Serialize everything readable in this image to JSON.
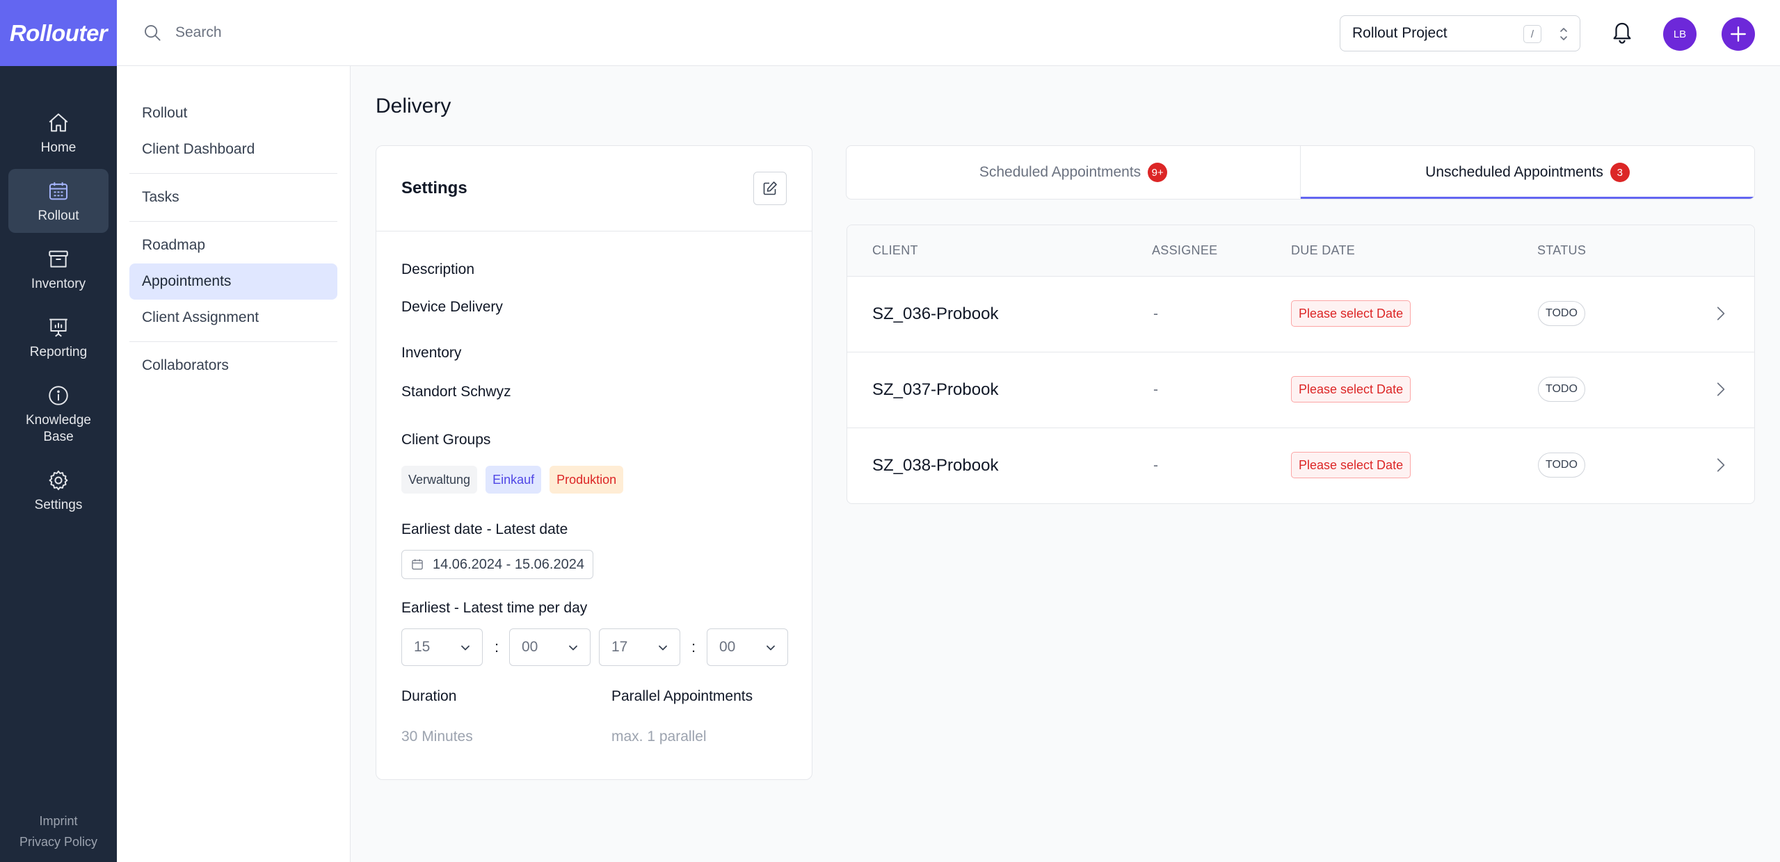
{
  "app": {
    "logo": "Rollouter"
  },
  "nav": {
    "items": [
      {
        "label": "Home",
        "icon": "home-icon"
      },
      {
        "label": "Rollout",
        "icon": "calendar-icon",
        "active": true
      },
      {
        "label": "Inventory",
        "icon": "archive-box-icon"
      },
      {
        "label": "Reporting",
        "icon": "presentation-chart-icon"
      },
      {
        "label": "Knowledge Base",
        "icon": "info-icon"
      },
      {
        "label": "Settings",
        "icon": "gear-icon"
      }
    ],
    "footer": {
      "imprint": "Imprint",
      "privacy": "Privacy Policy"
    }
  },
  "topbar": {
    "search_placeholder": "Search",
    "project": "Rollout Project",
    "shortcut": "/",
    "avatar_initials": "LB"
  },
  "subnav": {
    "items": [
      "Rollout",
      "Client Dashboard",
      "Tasks",
      "Roadmap",
      "Appointments",
      "Client Assignment",
      "Collaborators"
    ],
    "active": "Appointments"
  },
  "page": {
    "title": "Delivery"
  },
  "settings": {
    "title": "Settings",
    "description_label": "Description",
    "description_value": "Device Delivery",
    "inventory_label": "Inventory",
    "inventory_value": "Standort Schwyz",
    "client_groups_label": "Client Groups",
    "client_groups": [
      {
        "name": "Verwaltung",
        "bg": "#f3f4f6",
        "color": "#374151"
      },
      {
        "name": "Einkauf",
        "bg": "#e0e7ff",
        "color": "#4f46e5"
      },
      {
        "name": "Produktion",
        "bg": "#ffedd5",
        "color": "#dc2626"
      }
    ],
    "date_range_label": "Earliest date - Latest date",
    "date_range_value": "14.06.2024 - 15.06.2024",
    "time_label": "Earliest - Latest time per day",
    "earliest_hour": "15",
    "earliest_minute": "00",
    "latest_hour": "17",
    "latest_minute": "00",
    "time_separator": ":",
    "duration_label": "Duration",
    "duration_value": "30 Minutes",
    "parallel_label": "Parallel Appointments",
    "parallel_value": "max. 1 parallel"
  },
  "tabs": {
    "scheduled": {
      "label": "Scheduled Appointments",
      "count": "9+"
    },
    "unscheduled": {
      "label": "Unscheduled Appointments",
      "count": "3"
    }
  },
  "table": {
    "headers": {
      "client": "CLIENT",
      "assignee": "ASSIGNEE",
      "due_date": "DUE DATE",
      "status": "STATUS"
    },
    "rows": [
      {
        "client": "SZ_036-Probook",
        "assignee": "-",
        "due_date": "Please select Date",
        "status": "TODO"
      },
      {
        "client": "SZ_037-Probook",
        "assignee": "-",
        "due_date": "Please select Date",
        "status": "TODO"
      },
      {
        "client": "SZ_038-Probook",
        "assignee": "-",
        "due_date": "Please select Date",
        "status": "TODO"
      }
    ]
  },
  "colors": {
    "accent": "#6366f1",
    "sidebar": "#1e293b",
    "avatar": "#6d28d9",
    "badge_red": "#dc2626"
  }
}
